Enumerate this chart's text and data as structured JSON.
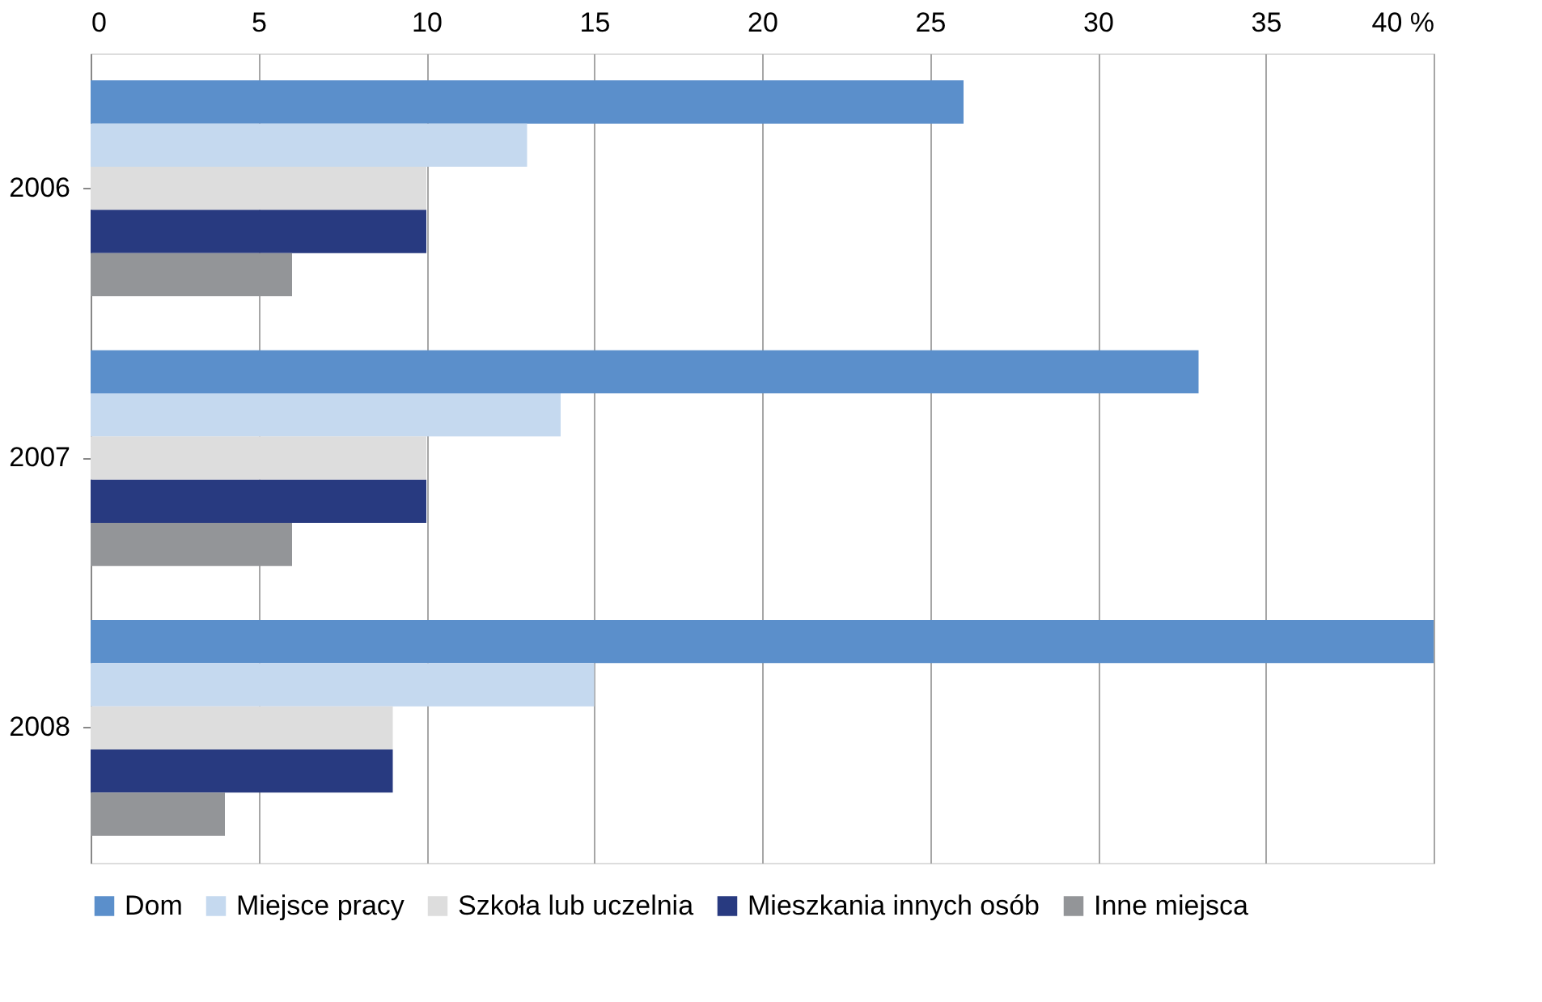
{
  "chart_data": {
    "type": "bar",
    "orientation": "horizontal",
    "categories": [
      "2006",
      "2007",
      "2008"
    ],
    "series": [
      {
        "name": "Dom",
        "color": "#5b8fcb",
        "values": [
          26,
          33,
          40
        ]
      },
      {
        "name": "Miejsce pracy",
        "color": "#c5d9ef",
        "values": [
          13,
          14,
          15
        ]
      },
      {
        "name": "Szkoła lub uczelnia",
        "color": "#dddddd",
        "values": [
          10,
          10,
          9
        ]
      },
      {
        "name": "Mieszkania innych osób",
        "color": "#283a80",
        "values": [
          10,
          10,
          9
        ]
      },
      {
        "name": "Inne miejsca",
        "color": "#939598",
        "values": [
          6,
          6,
          4
        ]
      }
    ],
    "xlim": [
      0,
      40
    ],
    "xticks": [
      0,
      5,
      10,
      15,
      20,
      25,
      30,
      35,
      {
        "value": 40,
        "label": "40 %"
      }
    ],
    "grid": "x",
    "legend": "bottom"
  }
}
